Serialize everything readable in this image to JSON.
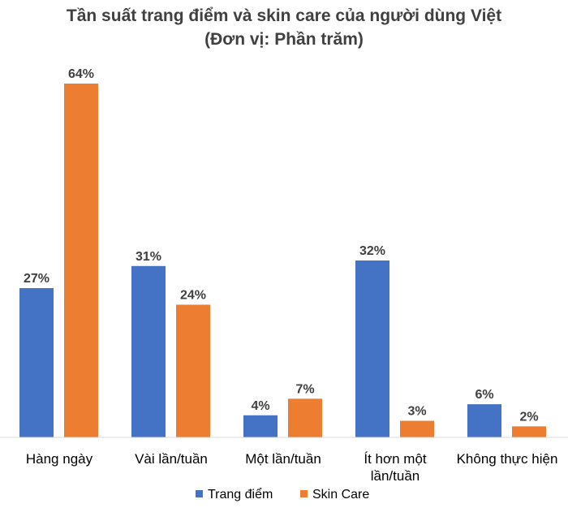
{
  "chart_data": {
    "type": "bar",
    "title": "Tần suất trang điểm và skin care của người dùng Việt",
    "subtitle": "(Đơn vị: Phần trăm)",
    "categories": [
      "Hàng ngày",
      "Vài lần/tuần",
      "Một lần/tuần",
      "Ít hơn một lần/tuần",
      "Không thực hiện"
    ],
    "category_lines": [
      [
        "Hàng ngày"
      ],
      [
        "Vài lần/tuần"
      ],
      [
        "Một lần/tuần"
      ],
      [
        "Ít hơn một",
        "lần/tuần"
      ],
      [
        "Không thực hiện"
      ]
    ],
    "series": [
      {
        "name": "Trang điểm",
        "color": "#4472C4",
        "values": [
          27,
          31,
          4,
          32,
          6
        ],
        "labels": [
          "27%",
          "31%",
          "4%",
          "32%",
          "6%"
        ]
      },
      {
        "name": "Skin Care",
        "color": "#ED7D31",
        "values": [
          64,
          24,
          7,
          3,
          2
        ],
        "labels": [
          "64%",
          "24%",
          "7%",
          "3%",
          "2%"
        ]
      }
    ],
    "ylim": [
      0,
      64
    ],
    "grid": false,
    "legend_position": "bottom"
  }
}
